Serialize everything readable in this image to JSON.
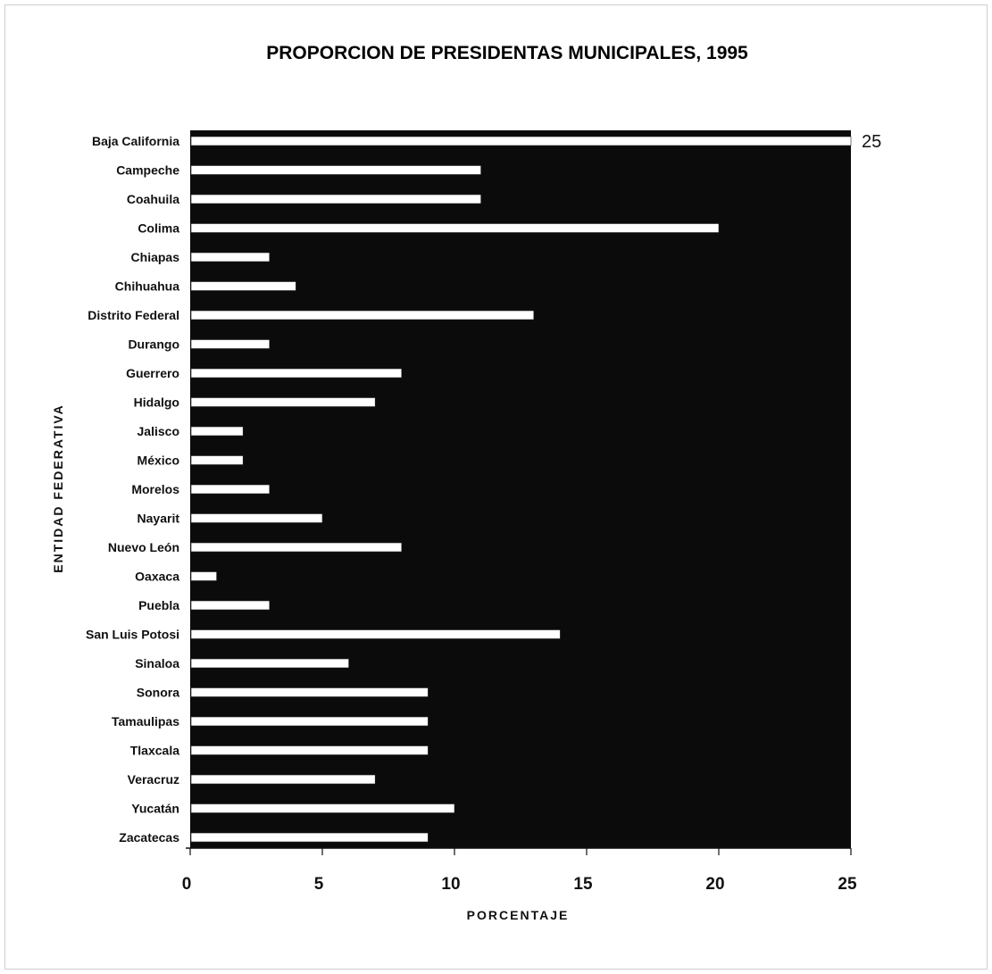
{
  "chart_data": {
    "type": "bar",
    "orientation": "horizontal",
    "title": "PROPORCION DE PRESIDENTAS MUNICIPALES, 1995",
    "xlabel": "PORCENTAJE",
    "ylabel": "ENTIDAD FEDERATIVA",
    "xlim": [
      0,
      25
    ],
    "xticks": [
      0,
      5,
      10,
      15,
      20,
      25
    ],
    "grid": false,
    "legend": "none",
    "plot_background": "#0b0b0b",
    "bar_color": "#ffffff",
    "categories": [
      "Baja California",
      "Campeche",
      "Coahuila",
      "Colima",
      "Chiapas",
      "Chihuahua",
      "Distrito Federal",
      "Durango",
      "Guerrero",
      "Hidalgo",
      "Jalisco",
      "México",
      "Morelos",
      "Nayarit",
      "Nuevo León",
      "Oaxaca",
      "Puebla",
      "San Luis Potosi",
      "Sinaloa",
      "Sonora",
      "Tamaulipas",
      "Tlaxcala",
      "Veracruz",
      "Yucatán",
      "Zacatecas"
    ],
    "values": [
      25,
      11,
      11,
      20,
      3,
      4,
      13,
      3,
      8,
      7,
      2,
      2,
      3,
      5,
      8,
      1,
      3,
      14,
      6,
      9,
      9,
      9,
      7,
      10,
      9
    ],
    "data_labels": [
      {
        "category": "Baja California",
        "text": "25"
      }
    ]
  }
}
